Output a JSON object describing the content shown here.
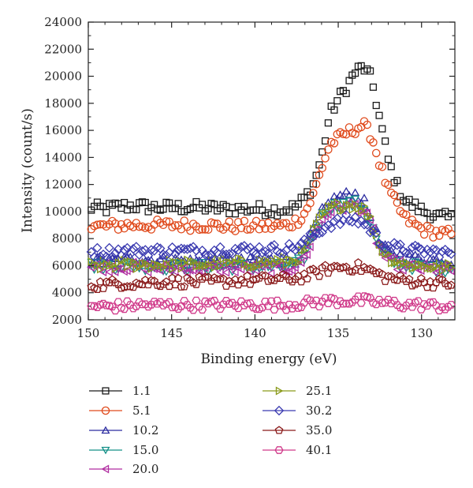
{
  "chart_data": {
    "type": "scatter",
    "title": "",
    "xlabel": "Binding energy (eV)",
    "ylabel": "Intensity (count/s)",
    "xlim": [
      150,
      128
    ],
    "ylim": [
      2000,
      24000
    ],
    "x_reversed": true,
    "x_ticks": [
      150,
      145,
      140,
      135,
      130
    ],
    "y_ticks": [
      2000,
      4000,
      6000,
      8000,
      10000,
      12000,
      14000,
      16000,
      18000,
      20000,
      22000,
      24000
    ],
    "x_tick_labels": [
      "150",
      "145",
      "140",
      "135",
      "130"
    ],
    "y_tick_labels": [
      "2000",
      "4000",
      "6000",
      "8000",
      "10000",
      "12000",
      "14000",
      "16000",
      "18000",
      "20000",
      "22000",
      "24000"
    ],
    "grid": false,
    "legend_position": "bottom",
    "x": [
      150.0,
      149.0,
      148.0,
      147.0,
      146.0,
      145.0,
      144.0,
      143.0,
      142.0,
      141.0,
      140.0,
      139.0,
      138.0,
      137.5,
      137.0,
      136.5,
      136.0,
      135.5,
      135.0,
      134.5,
      134.0,
      133.5,
      133.0,
      132.5,
      132.0,
      131.5,
      131.0,
      130.0,
      129.0,
      128.0
    ],
    "series": [
      {
        "name": "1.1",
        "marker": "square",
        "color": "#1a1a1a",
        "values": [
          10300,
          10200,
          10400,
          10400,
          10300,
          10300,
          10300,
          10300,
          10200,
          10200,
          10200,
          10100,
          10200,
          10400,
          11000,
          12000,
          14000,
          17200,
          18300,
          19200,
          20300,
          20700,
          19800,
          16800,
          13800,
          12000,
          10800,
          10100,
          9600,
          9500
        ]
      },
      {
        "name": "5.1",
        "marker": "circle",
        "color": "#e04a1c",
        "values": [
          8900,
          8900,
          9000,
          9000,
          9000,
          9000,
          9000,
          9000,
          8900,
          8900,
          8900,
          8900,
          9000,
          9300,
          9900,
          11200,
          13200,
          15000,
          15400,
          15800,
          16100,
          16400,
          15600,
          13500,
          11600,
          10500,
          9500,
          8700,
          8400,
          8300
        ]
      },
      {
        "name": "10.2",
        "marker": "triangle-up",
        "color": "#2c2ca0",
        "values": [
          6400,
          6300,
          6400,
          6500,
          6400,
          6400,
          6300,
          6300,
          6400,
          6300,
          6300,
          6400,
          6400,
          6500,
          7000,
          8600,
          9900,
          10700,
          11100,
          11200,
          11300,
          10800,
          9400,
          7600,
          7000,
          6800,
          6600,
          6500,
          6400,
          6300
        ]
      },
      {
        "name": "15.0",
        "marker": "triangle-down",
        "color": "#149088",
        "values": [
          6000,
          6000,
          6000,
          6000,
          5900,
          5900,
          5900,
          5900,
          5900,
          5900,
          5900,
          5900,
          5900,
          6100,
          6700,
          8300,
          9600,
          10300,
          10500,
          10500,
          10600,
          10300,
          9000,
          7200,
          6400,
          6200,
          6000,
          5900,
          5800,
          5800
        ]
      },
      {
        "name": "20.0",
        "marker": "triangle-left",
        "color": "#b02ca0",
        "values": [
          5900,
          5900,
          5900,
          5900,
          5800,
          5800,
          5800,
          5800,
          5800,
          5800,
          5800,
          5800,
          5800,
          6000,
          6600,
          8100,
          9400,
          10100,
          10300,
          10400,
          10400,
          10100,
          8900,
          7100,
          6300,
          6100,
          5900,
          5800,
          5700,
          5700
        ]
      },
      {
        "name": "25.1",
        "marker": "triangle-right",
        "color": "#8a9a1a",
        "values": [
          6000,
          6000,
          6100,
          6100,
          6100,
          6100,
          6100,
          6100,
          6200,
          6200,
          6200,
          6300,
          6300,
          6500,
          7000,
          8400,
          9600,
          10200,
          10400,
          10500,
          10500,
          10300,
          9200,
          7500,
          6700,
          6300,
          6100,
          6000,
          5900,
          5800
        ]
      },
      {
        "name": "30.2",
        "marker": "diamond",
        "color": "#3a3ab0",
        "values": [
          7000,
          7000,
          7100,
          7100,
          7100,
          7100,
          7100,
          7100,
          7200,
          7200,
          7200,
          7200,
          7300,
          7400,
          7700,
          8200,
          8700,
          9100,
          9200,
          9400,
          9400,
          9200,
          8600,
          7800,
          7500,
          7300,
          7200,
          7100,
          7000,
          6900
        ]
      },
      {
        "name": "35.0",
        "marker": "pentagon",
        "color": "#8a1a1a",
        "values": [
          4600,
          4600,
          4700,
          4700,
          4800,
          4800,
          4800,
          4800,
          4800,
          4900,
          4900,
          5000,
          5000,
          5100,
          5200,
          5400,
          5600,
          5800,
          5900,
          5900,
          5900,
          5800,
          5600,
          5300,
          5100,
          5000,
          4900,
          4800,
          4700,
          4700
        ]
      },
      {
        "name": "40.1",
        "marker": "hexagon",
        "color": "#d03a8a",
        "values": [
          3000,
          3000,
          3000,
          3100,
          3100,
          3100,
          3100,
          3100,
          3100,
          3100,
          3100,
          3100,
          3100,
          3200,
          3200,
          3300,
          3300,
          3400,
          3400,
          3400,
          3400,
          3400,
          3300,
          3300,
          3200,
          3200,
          3100,
          3100,
          3000,
          3000
        ]
      }
    ]
  }
}
